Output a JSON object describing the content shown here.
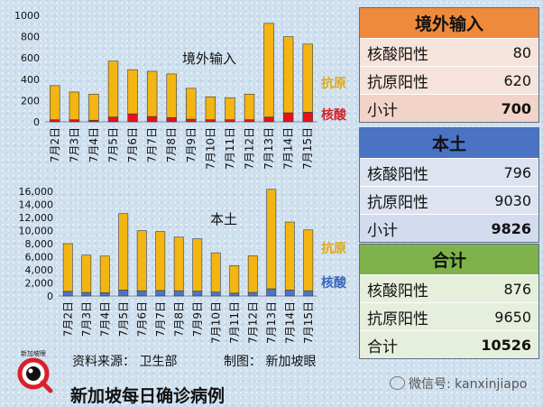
{
  "chart_data": [
    {
      "type": "bar",
      "title": "境外输入",
      "stacked": true,
      "categories": [
        "7月2日",
        "7月3日",
        "7月4日",
        "7月5日",
        "7月6日",
        "7月7日",
        "7月8日",
        "7月9日",
        "7月10日",
        "7月11日",
        "7月12日",
        "7月13日",
        "7月14日",
        "7月15日"
      ],
      "series": [
        {
          "name": "核酸",
          "color": "#e8101a",
          "values": [
            20,
            20,
            15,
            45,
            75,
            50,
            40,
            25,
            20,
            20,
            20,
            45,
            85,
            90
          ]
        },
        {
          "name": "抗原",
          "color": "#f3b512",
          "values": [
            320,
            260,
            245,
            525,
            415,
            425,
            410,
            290,
            215,
            205,
            240,
            880,
            715,
            640
          ]
        }
      ],
      "y_ticks": [
        "0",
        "200",
        "400",
        "600",
        "800",
        "1000"
      ],
      "ylim": [
        0,
        1000
      ],
      "grid": false,
      "legend": "right"
    },
    {
      "type": "bar",
      "title": "本土",
      "stacked": true,
      "categories": [
        "7月2日",
        "7月3日",
        "7月4日",
        "7月5日",
        "7月6日",
        "7月7日",
        "7月8日",
        "7月9日",
        "7月10日",
        "7月11日",
        "7月12日",
        "7月13日",
        "7月14日",
        "7月15日"
      ],
      "series": [
        {
          "name": "核酸",
          "color": "#4a76c8",
          "values": [
            700,
            550,
            500,
            900,
            800,
            850,
            800,
            750,
            600,
            450,
            550,
            1100,
            900,
            800
          ]
        },
        {
          "name": "抗原",
          "color": "#f3b512",
          "values": [
            7300,
            5700,
            5600,
            11700,
            9200,
            9000,
            8200,
            8000,
            6000,
            4200,
            5600,
            15200,
            10400,
            9300
          ]
        }
      ],
      "y_ticks": [
        "0",
        "2,000",
        "4,000",
        "6,000",
        "8,000",
        "10,000",
        "12,000",
        "14,000",
        "16,000"
      ],
      "ylim": [
        0,
        16000
      ],
      "grid": false,
      "legend": "right"
    }
  ],
  "tables": {
    "overseas": {
      "title": "境外输入",
      "rows": [
        {
          "label": "核酸阳性",
          "value": "80"
        },
        {
          "label": "抗原阳性",
          "value": "620"
        },
        {
          "label": "小计",
          "value": "700"
        }
      ]
    },
    "local": {
      "title": "本土",
      "rows": [
        {
          "label": "核酸阳性",
          "value": "796"
        },
        {
          "label": "抗原阳性",
          "value": "9030"
        },
        {
          "label": "小计",
          "value": "9826"
        }
      ]
    },
    "total": {
      "title": "合计",
      "rows": [
        {
          "label": "核酸阳性",
          "value": "876"
        },
        {
          "label": "抗原阳性",
          "value": "9650"
        },
        {
          "label": "合计",
          "value": "10526"
        }
      ]
    }
  },
  "footer": {
    "source": "资料来源： 卫生部",
    "maker": "制图： 新加坡眼",
    "title": "新加坡每日确诊病例",
    "logo_text": "新加坡眼",
    "wechat": "微信号: kanxinjiapo"
  },
  "icons": {
    "logo": "magnifier-eye-logo",
    "wechat": "wechat-icon"
  }
}
